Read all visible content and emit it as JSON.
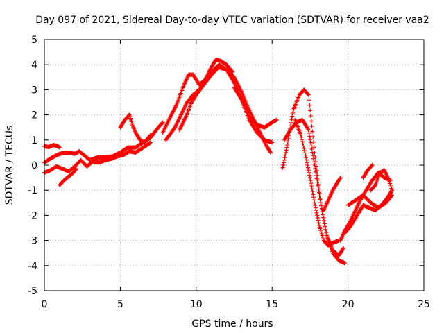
{
  "chart_data": {
    "type": "scatter",
    "title": "Day 097 of 2021, Sidereal Day-to-day VTEC variation (SDTVAR) for receiver vaa2",
    "xlabel": "GPS time / hours",
    "ylabel": "SDTVAR / TECUs",
    "xlim": [
      0,
      25
    ],
    "ylim": [
      -5,
      5
    ],
    "xticks": [
      "0",
      "5",
      "10",
      "15",
      "20",
      "25"
    ],
    "yticks": [
      "5",
      "4",
      "3",
      "2",
      "1",
      "0",
      "-1",
      "-2",
      "-3",
      "-4",
      "-5"
    ],
    "grid": true,
    "marker": "plus",
    "color": "#ff0000",
    "series": [
      {
        "x": [
          0.0,
          0.3,
          0.6,
          0.9,
          1.0
        ],
        "y": [
          0.75,
          0.72,
          0.8,
          0.75,
          0.7
        ]
      },
      {
        "x": [
          0.0,
          0.5,
          1.0,
          1.5,
          2.0,
          2.3,
          2.7,
          3.0,
          3.5,
          4.0,
          4.5,
          5.0,
          5.5,
          6.0,
          6.5,
          7.0,
          7.5,
          7.8
        ],
        "y": [
          0.1,
          0.3,
          0.45,
          0.5,
          0.45,
          0.55,
          0.35,
          0.2,
          0.3,
          0.3,
          0.35,
          0.5,
          0.7,
          0.7,
          0.9,
          1.1,
          1.5,
          1.7
        ]
      },
      {
        "x": [
          0.0,
          0.4,
          0.8,
          1.2,
          1.6,
          2.0,
          2.4,
          2.8,
          3.2,
          3.6,
          4.0,
          4.4,
          4.8,
          5.2,
          5.6,
          6.0,
          6.5,
          7.0
        ],
        "y": [
          -0.3,
          -0.2,
          -0.05,
          -0.15,
          -0.25,
          -0.05,
          0.2,
          -0.05,
          0.15,
          0.1,
          0.2,
          0.25,
          0.35,
          0.4,
          0.55,
          0.5,
          0.7,
          0.9
        ]
      },
      {
        "x": [
          1.0,
          1.3,
          1.6,
          1.9,
          2.1
        ],
        "y": [
          -0.8,
          -0.6,
          -0.45,
          -0.3,
          -0.15
        ]
      },
      {
        "x": [
          5.0,
          5.3,
          5.6,
          5.8,
          6.0,
          6.3,
          6.6,
          7.0
        ],
        "y": [
          1.5,
          1.8,
          2.0,
          1.6,
          1.3,
          1.0,
          0.9,
          1.2
        ]
      },
      {
        "x": [
          7.8,
          8.2,
          8.7,
          9.2,
          9.5,
          9.8,
          10.2,
          10.6,
          11.0,
          11.3,
          11.6,
          12.0,
          12.4
        ],
        "y": [
          1.3,
          1.8,
          2.4,
          3.2,
          3.6,
          3.6,
          3.2,
          3.4,
          3.9,
          4.2,
          4.15,
          4.0,
          3.7
        ]
      },
      {
        "x": [
          8.0,
          8.6,
          9.0,
          9.4,
          9.8,
          10.2,
          10.6,
          11.0,
          11.5,
          12.0,
          12.5,
          13.0,
          13.5,
          14.0,
          14.5,
          15.0,
          15.3
        ],
        "y": [
          1.0,
          1.5,
          2.0,
          2.5,
          2.8,
          3.0,
          3.3,
          3.7,
          4.0,
          3.8,
          3.3,
          2.6,
          2.0,
          1.6,
          1.5,
          1.7,
          1.8
        ]
      },
      {
        "x": [
          8.9,
          9.3,
          9.7,
          10.0,
          10.5,
          11.0,
          11.5,
          12.0,
          12.5,
          13.0,
          13.4,
          13.8,
          14.2,
          14.6,
          14.9
        ],
        "y": [
          1.4,
          1.9,
          2.5,
          2.8,
          3.2,
          3.6,
          3.9,
          3.8,
          3.5,
          2.9,
          2.3,
          1.8,
          1.3,
          0.8,
          0.5
        ]
      },
      {
        "x": [
          12.5,
          13.0,
          13.5,
          14.0,
          14.5,
          15.0
        ],
        "y": [
          3.1,
          2.6,
          1.8,
          1.3,
          1.0,
          0.9
        ]
      },
      {
        "x": [
          15.7,
          16.0,
          16.4,
          16.8,
          17.1,
          17.4,
          17.8,
          18.2,
          18.6,
          19.0,
          19.4,
          19.8
        ],
        "y": [
          -0.1,
          0.8,
          2.2,
          2.8,
          3.0,
          2.8,
          0.5,
          -1.5,
          -2.8,
          -3.5,
          -3.8,
          -3.9
        ]
      },
      {
        "x": [
          15.8,
          16.2,
          16.6,
          17.0,
          17.4,
          17.8,
          18.2,
          18.6,
          19.0,
          19.4,
          19.7
        ],
        "y": [
          1.0,
          1.4,
          1.7,
          1.8,
          1.4,
          0.0,
          -1.5,
          -2.8,
          -3.4,
          -3.6,
          -3.3
        ]
      },
      {
        "x": [
          16.5,
          16.9,
          17.2,
          17.5,
          17.8,
          18.1,
          18.4,
          18.7,
          19.0,
          19.4
        ],
        "y": [
          1.8,
          1.2,
          0.4,
          -0.5,
          -1.5,
          -2.4,
          -3.0,
          -3.2,
          -3.1,
          -3.0
        ]
      },
      {
        "x": [
          18.4,
          18.7,
          19.0,
          19.3,
          19.5
        ],
        "y": [
          -1.8,
          -1.4,
          -1.0,
          -0.7,
          -0.5
        ]
      },
      {
        "x": [
          19.5,
          19.8,
          20.1,
          20.5,
          20.8,
          21.2,
          21.6,
          22.0,
          22.4,
          22.8
        ],
        "y": [
          -3.0,
          -2.6,
          -2.3,
          -1.8,
          -1.4,
          -1.0,
          -0.6,
          -0.3,
          -0.5,
          -0.6
        ]
      },
      {
        "x": [
          19.8,
          20.2,
          20.6,
          21.0,
          21.4,
          21.8,
          22.2,
          22.6,
          22.9
        ],
        "y": [
          -2.7,
          -2.4,
          -2.0,
          -1.6,
          -1.7,
          -1.8,
          -1.6,
          -1.3,
          -1.0
        ]
      },
      {
        "x": [
          20.0,
          20.5,
          21.0,
          21.5,
          22.0,
          22.5,
          22.9
        ],
        "y": [
          -1.6,
          -1.4,
          -1.2,
          -1.5,
          -1.7,
          -1.5,
          -1.2
        ]
      },
      {
        "x": [
          21.5,
          21.8,
          22.1,
          22.4,
          22.7,
          22.9
        ],
        "y": [
          -1.0,
          -0.8,
          -0.3,
          -0.2,
          -0.6,
          -1.0
        ]
      },
      {
        "x": [
          21.0,
          21.3,
          21.6
        ],
        "y": [
          -0.5,
          -0.2,
          0.0
        ]
      }
    ]
  }
}
